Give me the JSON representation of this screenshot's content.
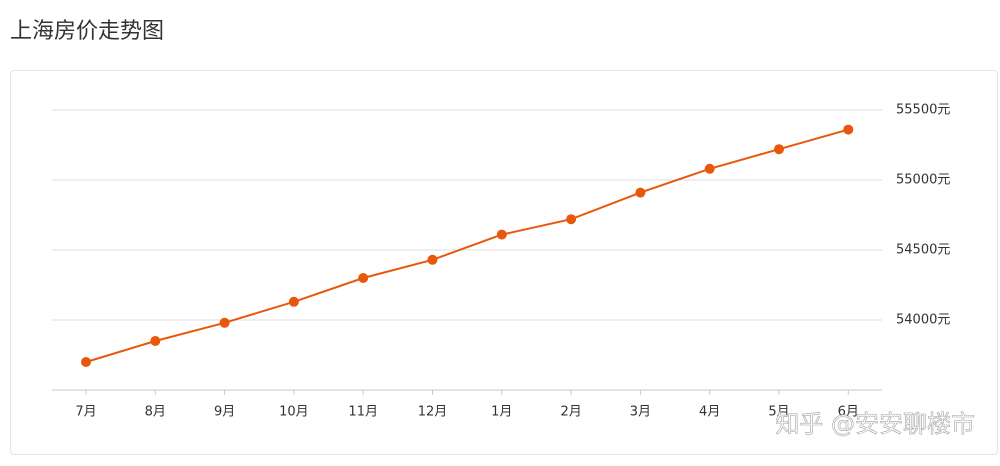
{
  "chart_data": {
    "type": "line",
    "title": "上海房价走势图",
    "categories": [
      "7月",
      "8月",
      "9月",
      "10月",
      "11月",
      "12月",
      "1月",
      "2月",
      "3月",
      "4月",
      "5月",
      "6月"
    ],
    "series": [
      {
        "color": "#e8580c",
        "values": [
          53700,
          53850,
          53980,
          54130,
          54300,
          54430,
          54610,
          54720,
          54910,
          55080,
          55220,
          55360
        ]
      }
    ],
    "ylim": [
      53500,
      55500
    ],
    "yticks": [
      {
        "value": 54000,
        "label": "54000元"
      },
      {
        "value": 54500,
        "label": "54500元"
      },
      {
        "value": 55000,
        "label": "55000元"
      },
      {
        "value": 55500,
        "label": "55500元"
      }
    ],
    "grid": true,
    "watermark": "知乎 @安安聊楼市"
  }
}
